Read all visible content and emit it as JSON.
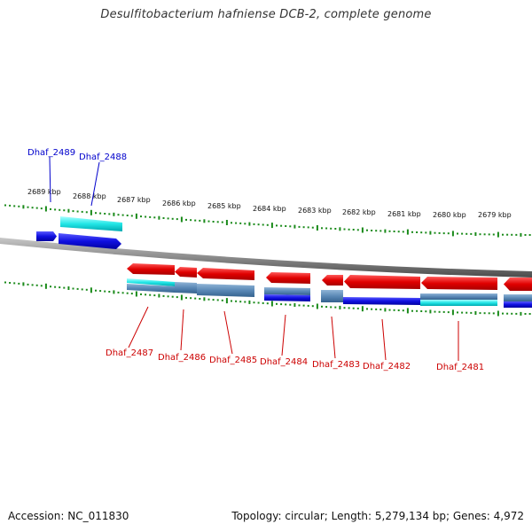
{
  "title": "Desulfitobacterium hafniense DCB-2, complete genome",
  "footer": {
    "accession": "Accession: NC_011830",
    "summary": "Topology: circular; Length: 5,279,134 bp; Genes: 4,972"
  },
  "colors": {
    "forward_label": "#0000cc",
    "reverse_label": "#cc0000",
    "forward_gene": "#1a1ae6",
    "reverse_gene": "#e60000",
    "cyan_feature": "#1fe0e0",
    "steel_feature": "#5a8ab8",
    "backbone": "#8a8a8a",
    "ticks": "#1a8a1a"
  },
  "scale": {
    "unit": "kbp",
    "labels": [
      "2689 kbp",
      "2688 kbp",
      "2687 kbp",
      "2686 kbp",
      "2685 kbp",
      "2684 kbp",
      "2683 kbp",
      "2682 kbp",
      "2681 kbp",
      "2680 kbp",
      "2679 kbp"
    ]
  },
  "genes": {
    "forward": [
      "Dhaf_2489",
      "Dhaf_2488"
    ],
    "reverse": [
      "Dhaf_2487",
      "Dhaf_2486",
      "Dhaf_2485",
      "Dhaf_2484",
      "Dhaf_2483",
      "Dhaf_2482",
      "Dhaf_2481"
    ]
  }
}
